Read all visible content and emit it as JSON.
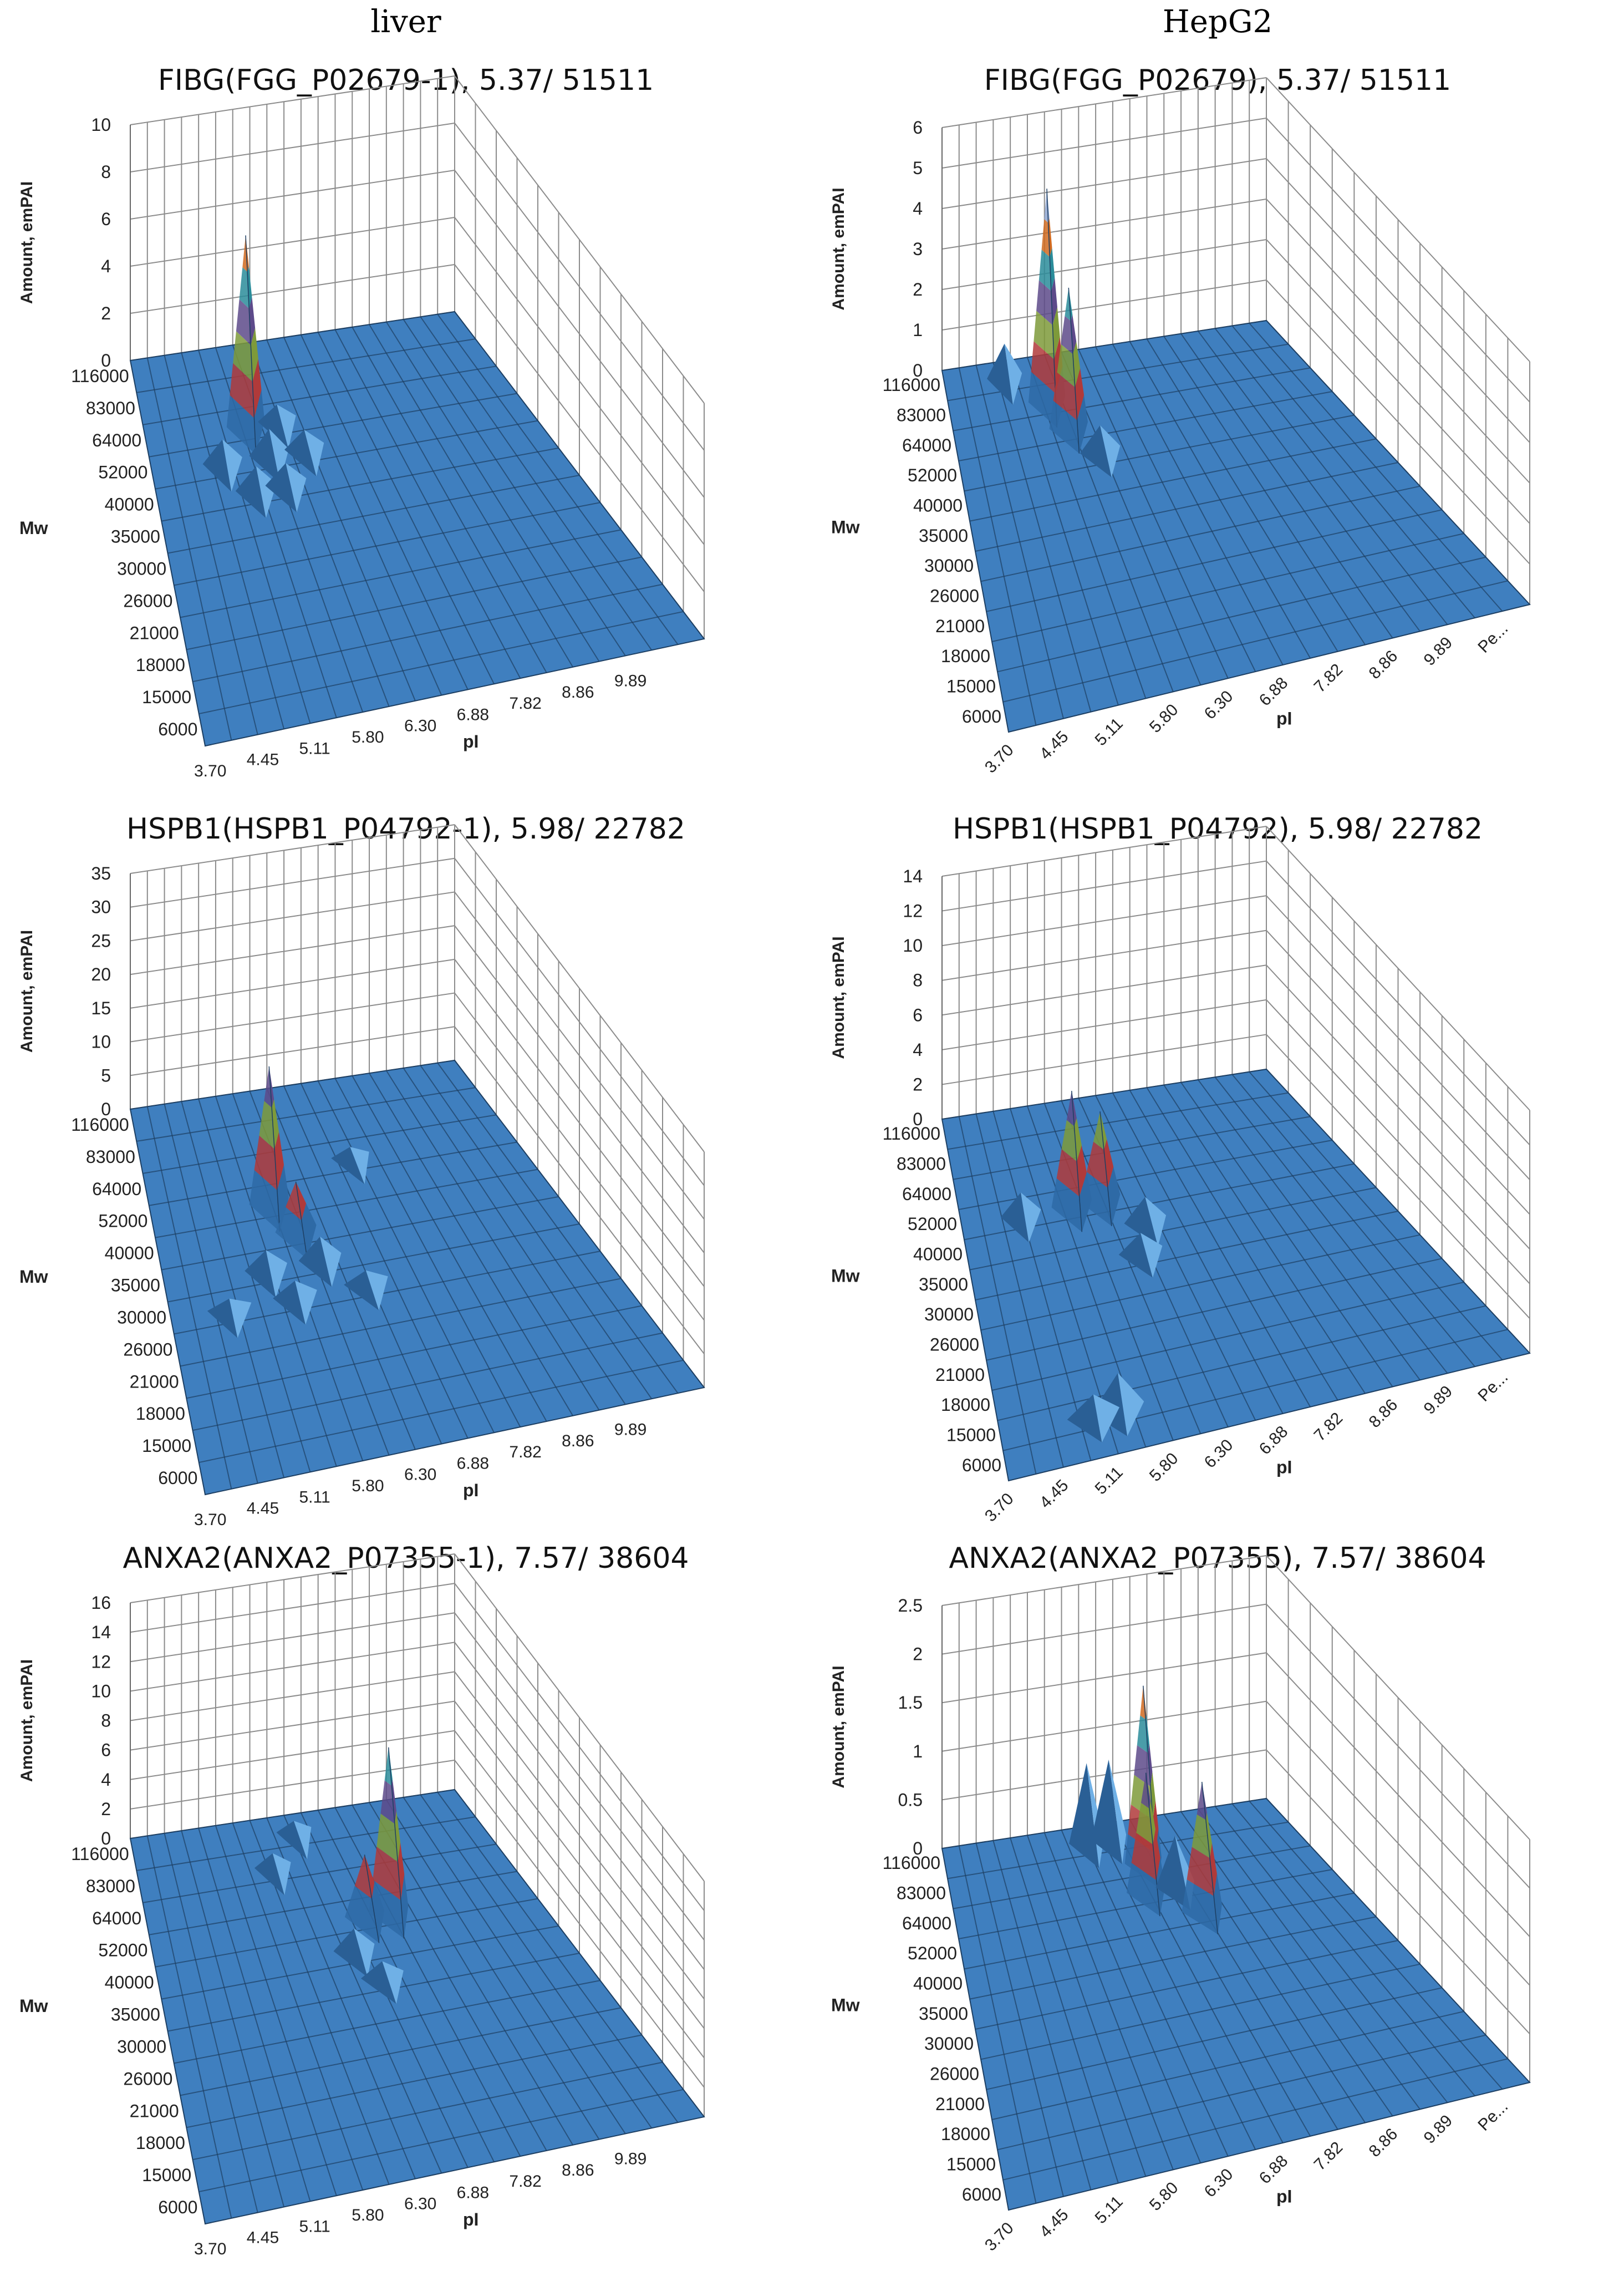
{
  "columns": {
    "left": "liver",
    "right": "HepG2"
  },
  "colors": {
    "floor": "#3f7fbf",
    "floor_line": "#1d3f63",
    "grid": "#8c8c8c",
    "levels": [
      "#2e6aa6",
      "#b03a3a",
      "#7e9a3a",
      "#5d4a8a",
      "#2a8c9a",
      "#d06a20",
      "#8fa6d0"
    ]
  },
  "chart_data": [
    {
      "type": "3d-surface",
      "sample": "liver",
      "title": "FIBG(FGG_P02679-1), 5.37/ 51511",
      "zlabel": "Amount, emPAI",
      "ylabel": "Mw",
      "xlabel": "pI",
      "zlim": [
        0,
        10
      ],
      "zticks": [
        "10",
        "8",
        "6",
        "4",
        "2",
        "0"
      ],
      "mw_ticks": [
        "116000",
        "83000",
        "64000",
        "52000",
        "40000",
        "35000",
        "30000",
        "26000",
        "21000",
        "18000",
        "15000",
        "6000"
      ],
      "pi_ticks": [
        "3.70",
        "4.45",
        "5.11",
        "5.80",
        "6.30",
        "6.88",
        "7.82",
        "8.86",
        "9.89"
      ],
      "series": [
        {
          "name": "main",
          "pI": 5.37,
          "Mw": 64000,
          "value": 8
        },
        {
          "name": "minor",
          "pI": 4.8,
          "Mw": 52000,
          "value": 0.9
        },
        {
          "name": "minor",
          "pI": 5.6,
          "Mw": 52000,
          "value": 1.0
        },
        {
          "name": "minor",
          "pI": 5.2,
          "Mw": 40000,
          "value": 0.9
        },
        {
          "name": "minor",
          "pI": 5.7,
          "Mw": 40000,
          "value": 0.8
        },
        {
          "name": "minor",
          "pI": 5.9,
          "Mw": 64000,
          "value": 0.6
        },
        {
          "name": "minor",
          "pI": 6.1,
          "Mw": 52000,
          "value": 0.7
        }
      ]
    },
    {
      "type": "3d-surface",
      "sample": "HepG2",
      "title": "FIBG(FGG_P02679), 5.37/ 51511",
      "zlabel": "Amount, emPAI",
      "ylabel": "Mw",
      "xlabel": "pI",
      "zlim": [
        0,
        6
      ],
      "zticks": [
        "6",
        "5",
        "4",
        "3",
        "2",
        "1",
        "0"
      ],
      "mw_ticks": [
        "116000",
        "83000",
        "64000",
        "52000",
        "40000",
        "35000",
        "30000",
        "26000",
        "21000",
        "18000",
        "15000",
        "6000"
      ],
      "pi_ticks": [
        "3.70",
        "4.45",
        "5.11",
        "5.80",
        "6.30",
        "6.88",
        "7.82",
        "8.86",
        "9.89",
        "Pe..."
      ],
      "series": [
        {
          "name": "main",
          "pI": 5.37,
          "Mw": 83000,
          "value": 5.2
        },
        {
          "name": "second",
          "pI": 5.58,
          "Mw": 64000,
          "value": 3.4
        },
        {
          "name": "minor",
          "pI": 4.75,
          "Mw": 116000,
          "value": 0.8
        },
        {
          "name": "minor",
          "pI": 5.9,
          "Mw": 52000,
          "value": 0.6
        }
      ]
    },
    {
      "type": "3d-surface",
      "sample": "liver",
      "title": "HSPB1(HSPB1_P04792-1), 5.98/ 22782",
      "zlabel": "Amount, emPAI",
      "ylabel": "Mw",
      "xlabel": "pI",
      "zlim": [
        0,
        35
      ],
      "zticks": [
        "35",
        "30",
        "25",
        "20",
        "15",
        "10",
        "5",
        "0"
      ],
      "mw_ticks": [
        "116000",
        "83000",
        "64000",
        "52000",
        "40000",
        "35000",
        "30000",
        "26000",
        "21000",
        "18000",
        "15000",
        "6000"
      ],
      "pi_ticks": [
        "3.70",
        "4.45",
        "5.11",
        "5.80",
        "6.30",
        "6.88",
        "7.82",
        "8.86",
        "9.89"
      ],
      "series": [
        {
          "name": "main",
          "pI": 5.6,
          "Mw": 52000,
          "value": 20
        },
        {
          "name": "second",
          "pI": 5.85,
          "Mw": 40000,
          "value": 7
        },
        {
          "name": "minor",
          "pI": 5.2,
          "Mw": 35000,
          "value": 2.5
        },
        {
          "name": "minor",
          "pI": 6.0,
          "Mw": 35000,
          "value": 3
        },
        {
          "name": "minor",
          "pI": 5.5,
          "Mw": 30000,
          "value": 2
        },
        {
          "name": "minor",
          "pI": 6.4,
          "Mw": 30000,
          "value": 1.5
        },
        {
          "name": "minor",
          "pI": 7.0,
          "Mw": 64000,
          "value": 1.2
        },
        {
          "name": "minor",
          "pI": 4.5,
          "Mw": 30000,
          "value": 1.2
        }
      ]
    },
    {
      "type": "3d-surface",
      "sample": "HepG2",
      "title": "HSPB1(HSPB1_P04792), 5.98/ 22782",
      "zlabel": "Amount, emPAI",
      "ylabel": "Mw",
      "xlabel": "pI",
      "zlim": [
        0,
        14
      ],
      "zticks": [
        "14",
        "12",
        "10",
        "8",
        "6",
        "4",
        "2",
        "0"
      ],
      "mw_ticks": [
        "116000",
        "83000",
        "64000",
        "52000",
        "40000",
        "35000",
        "30000",
        "26000",
        "21000",
        "18000",
        "15000",
        "6000"
      ],
      "pi_ticks": [
        "3.70",
        "4.45",
        "5.11",
        "5.80",
        "6.30",
        "6.88",
        "7.82",
        "8.86",
        "9.89",
        "Pe..."
      ],
      "series": [
        {
          "name": "main",
          "pI": 5.45,
          "Mw": 52000,
          "value": 6.5
        },
        {
          "name": "second",
          "pI": 5.9,
          "Mw": 52000,
          "value": 5
        },
        {
          "name": "minor",
          "pI": 4.6,
          "Mw": 52000,
          "value": 1.2
        },
        {
          "name": "minor",
          "pI": 6.3,
          "Mw": 40000,
          "value": 1.3
        },
        {
          "name": "minor",
          "pI": 6.1,
          "Mw": 35000,
          "value": 1.0
        },
        {
          "name": "minor",
          "pI": 5.11,
          "Mw": 15000,
          "value": 2
        },
        {
          "name": "minor",
          "pI": 4.8,
          "Mw": 15000,
          "value": 1.1
        }
      ]
    },
    {
      "type": "3d-surface",
      "sample": "liver",
      "title": "ANXA2(ANXA2_P07355-1), 7.57/ 38604",
      "zlabel": "Amount, emPAI",
      "ylabel": "Mw",
      "xlabel": "pI",
      "zlim": [
        0,
        16
      ],
      "zticks": [
        "16",
        "14",
        "12",
        "10",
        "8",
        "6",
        "4",
        "2",
        "0"
      ],
      "mw_ticks": [
        "116000",
        "83000",
        "64000",
        "52000",
        "40000",
        "35000",
        "30000",
        "26000",
        "21000",
        "18000",
        "15000",
        "6000"
      ],
      "pi_ticks": [
        "3.70",
        "4.45",
        "5.11",
        "5.80",
        "6.30",
        "6.88",
        "7.82",
        "8.86",
        "9.89"
      ],
      "series": [
        {
          "name": "main",
          "pI": 7.57,
          "Mw": 52000,
          "value": 11
        },
        {
          "name": "second",
          "pI": 7.0,
          "Mw": 52000,
          "value": 4
        },
        {
          "name": "minor",
          "pI": 6.6,
          "Mw": 40000,
          "value": 1.3
        },
        {
          "name": "minor",
          "pI": 6.8,
          "Mw": 35000,
          "value": 0.9
        },
        {
          "name": "minor",
          "pI": 6.0,
          "Mw": 83000,
          "value": 0.8
        },
        {
          "name": "minor",
          "pI": 6.5,
          "Mw": 116000,
          "value": 0.6
        }
      ]
    },
    {
      "type": "3d-surface",
      "sample": "HepG2",
      "title": "ANXA2(ANXA2_P07355), 7.57/ 38604",
      "zlabel": "Amount, emPAI",
      "ylabel": "Mw",
      "xlabel": "pI",
      "zlim": [
        0,
        2.5
      ],
      "zticks": [
        "2.5",
        "2",
        "1.5",
        "1",
        "0.5",
        "0"
      ],
      "mw_ticks": [
        "116000",
        "83000",
        "64000",
        "52000",
        "40000",
        "35000",
        "30000",
        "26000",
        "21000",
        "18000",
        "15000",
        "6000"
      ],
      "pi_ticks": [
        "3.70",
        "4.45",
        "5.11",
        "5.80",
        "6.30",
        "6.88",
        "7.82",
        "8.86",
        "9.89",
        "Pe..."
      ],
      "series": [
        {
          "name": "main",
          "pI": 6.88,
          "Mw": 83000,
          "value": 1.8
        },
        {
          "name": "second",
          "pI": 7.57,
          "Mw": 52000,
          "value": 1.3
        },
        {
          "name": "third",
          "pI": 6.7,
          "Mw": 64000,
          "value": 1.2
        },
        {
          "name": "minor",
          "pI": 6.2,
          "Mw": 116000,
          "value": 0.8
        },
        {
          "name": "minor",
          "pI": 6.55,
          "Mw": 116000,
          "value": 0.8
        },
        {
          "name": "minor",
          "pI": 7.3,
          "Mw": 64000,
          "value": 0.5
        }
      ]
    }
  ]
}
